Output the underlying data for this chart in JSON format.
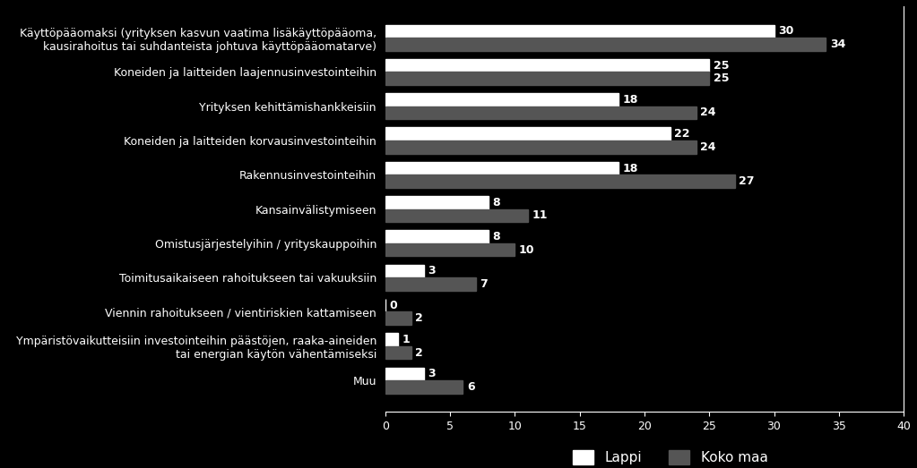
{
  "categories": [
    "Käyttöpääomaksi (yrityksen kasvun vaatima lisäkäyttöpääoma,\nkausirahoitus tai suhdanteista johtuva käyttöpääomatarve)",
    "Koneiden ja laitteiden laajennusinvestointeihin",
    "Yrityksen kehittämishankkeisiin",
    "Koneiden ja laitteiden korvausinvestointeihin",
    "Rakennusinvestointeihin",
    "Kansainvälistymiseen",
    "Omistusjärjestelyihin / yrityskauppoihin",
    "Toimitusaikaiseen rahoitukseen tai vakuuksiin",
    "Viennin rahoitukseen / vientiriskien kattamiseen",
    "Ympäristövaikutteisiin investointeihin päästöjen, raaka-aineiden\ntai energian käytön vähentämiseksi",
    "Muu"
  ],
  "lappi": [
    30,
    25,
    18,
    22,
    18,
    8,
    8,
    3,
    0,
    1,
    3
  ],
  "koko_maa": [
    34,
    25,
    24,
    24,
    27,
    11,
    10,
    7,
    2,
    2,
    6
  ],
  "color_lappi": "#ffffff",
  "color_koko_maa": "#555555",
  "background_color": "#000000",
  "text_color": "#ffffff",
  "bar_height": 0.38,
  "xlim": [
    0,
    40
  ],
  "xticks": [
    0,
    5,
    10,
    15,
    20,
    25,
    30,
    35,
    40
  ],
  "legend_lappi": "Lappi",
  "legend_koko_maa": "Koko maa",
  "label_fontsize": 9,
  "tick_fontsize": 9,
  "legend_fontsize": 11,
  "value_fontsize": 9
}
